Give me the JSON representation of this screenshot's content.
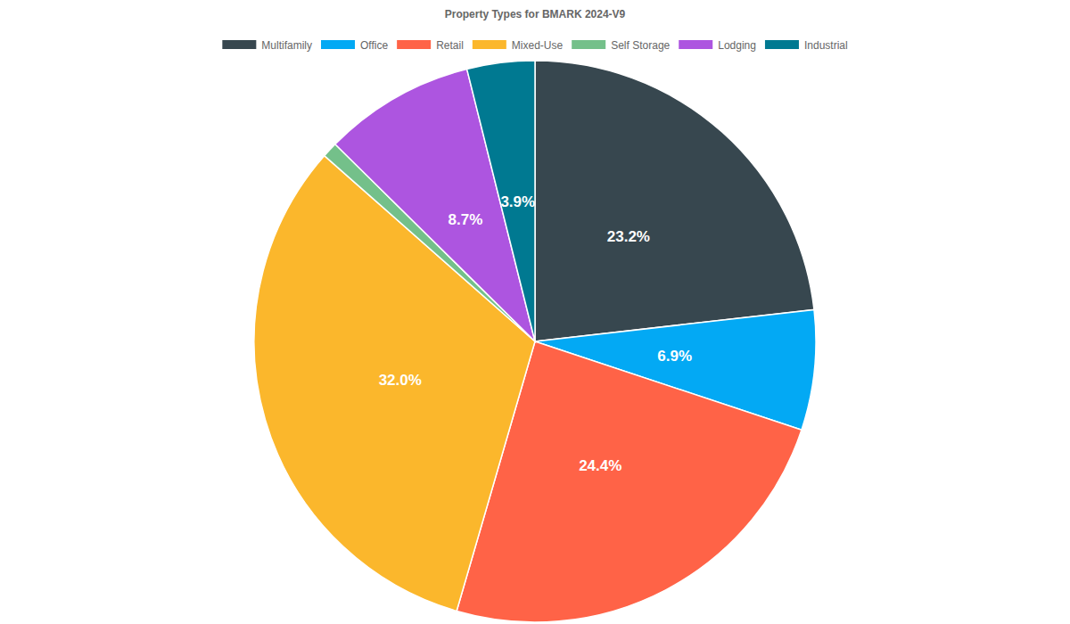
{
  "chart_data": {
    "type": "pie",
    "title": "Property Types for BMARK 2024-V9",
    "categories": [
      "Multifamily",
      "Office",
      "Retail",
      "Mixed-Use",
      "Self Storage",
      "Lodging",
      "Industrial"
    ],
    "values": [
      23.2,
      6.9,
      24.4,
      32.0,
      0.9,
      8.7,
      3.9
    ],
    "value_labels": [
      "23.2%",
      "6.9%",
      "24.4%",
      "32.0%",
      null,
      "8.7%",
      "3.9%"
    ],
    "colors": [
      "#37474f",
      "#03a9f4",
      "#ff6347",
      "#fbb72c",
      "#74c08a",
      "#ad55e0",
      "#007991"
    ],
    "data_labels": true,
    "legend": "top"
  }
}
